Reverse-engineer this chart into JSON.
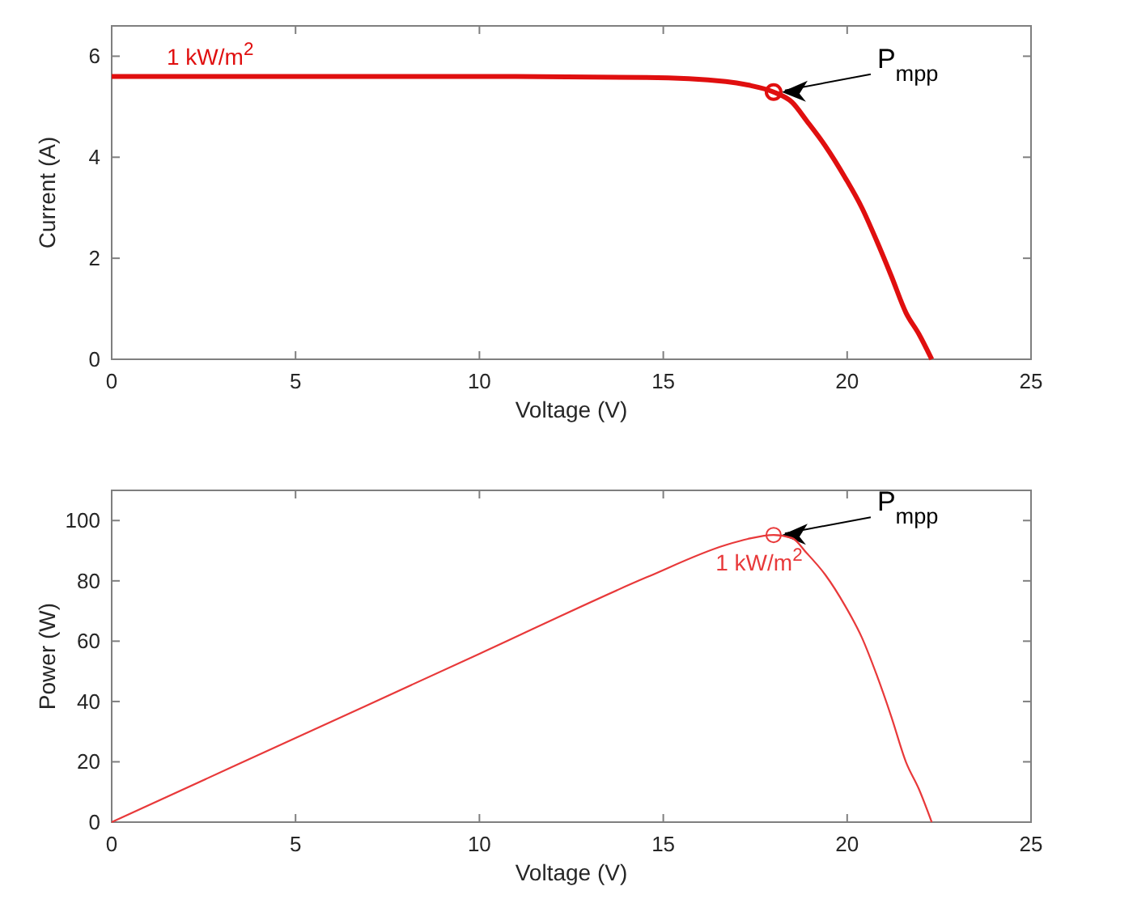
{
  "chart_data": [
    {
      "type": "line",
      "xlabel": "Voltage (V)",
      "ylabel": "Current (A)",
      "xlim": [
        0,
        25
      ],
      "ylim": [
        0,
        6.6
      ],
      "xticks": [
        0,
        5,
        10,
        15,
        20,
        25
      ],
      "yticks": [
        0,
        2,
        4,
        6
      ],
      "series": [
        {
          "color": "#e00f0f",
          "marker": "none",
          "x": [
            0,
            5,
            10,
            14.55,
            16.7,
            17.3,
            18,
            18.5,
            18.9,
            19.4,
            19.95,
            20.4,
            20.8,
            21.2,
            21.6,
            21.95,
            22.3
          ],
          "values": [
            5.6,
            5.6,
            5.6,
            5.58,
            5.5,
            5.43,
            5.29,
            5.09,
            4.72,
            4.23,
            3.59,
            3.0,
            2.35,
            1.65,
            0.92,
            0.5,
            0
          ]
        },
        {
          "type": "scatter",
          "color": "#e00f0f",
          "marker": "circle",
          "x": [
            18
          ],
          "values": [
            5.29
          ]
        }
      ],
      "annotations": [
        "1 kW/m$^{2}$",
        {
          "text": "P$_{mpp}$",
          "x": 18,
          "y": 5.29
        }
      ]
    },
    {
      "type": "line",
      "xlabel": "Voltage (V)",
      "ylabel": "Power (W)",
      "xlim": [
        0,
        25
      ],
      "ylim": [
        0,
        110
      ],
      "xticks": [
        0,
        5,
        10,
        15,
        20,
        25
      ],
      "yticks": [
        0,
        20,
        40,
        60,
        80,
        100
      ],
      "series": [
        {
          "color": "#e8393a",
          "marker": "none",
          "x": [
            0,
            5,
            10,
            14.55,
            16.7,
            17.3,
            18,
            18.5,
            18.9,
            19.4,
            19.95,
            20.4,
            20.8,
            21.2,
            21.6,
            21.95,
            22.3
          ],
          "values": [
            0,
            27.9,
            55.8,
            81.2,
            91.9,
            93.9,
            95.2,
            94.2,
            89.2,
            82.1,
            71.6,
            61.2,
            48.9,
            35.0,
            19.9,
            11.0,
            0
          ]
        },
        {
          "type": "scatter",
          "color": "#e8393a",
          "marker": "circle",
          "x": [
            18
          ],
          "values": [
            95.2
          ]
        }
      ],
      "annotations": [
        "1 kW/m$^{2}$",
        {
          "text": "P$_{mpp}$",
          "x": 18,
          "y": 95.2
        }
      ]
    }
  ]
}
